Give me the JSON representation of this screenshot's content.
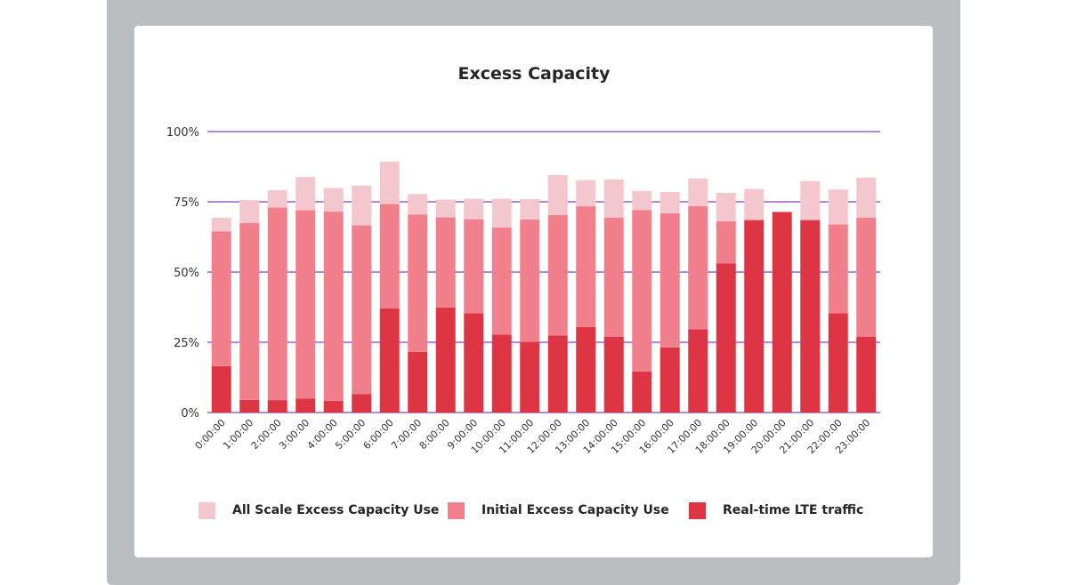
{
  "chart_data": {
    "type": "bar",
    "stacked": true,
    "title": "Excess Capacity",
    "xlabel": "",
    "ylabel": "",
    "ylim": [
      0,
      100
    ],
    "y_ticks": [
      "0%",
      "25%",
      "50%",
      "75%",
      "100%"
    ],
    "categories": [
      "0:00:00",
      "1:00:00",
      "2:00:00",
      "3:00:00",
      "4:00:00",
      "5:00:00",
      "6:00:00",
      "7:00:00",
      "8:00:00",
      "9:00:00",
      "10:00:00",
      "11:00:00",
      "12:00:00",
      "13:00:00",
      "14:00:00",
      "15:00:00",
      "16:00:00",
      "17:00:00",
      "18:00:00",
      "19:00:00",
      "20:00:00",
      "21:00:00",
      "22:00:00",
      "23:00:00"
    ],
    "series": [
      {
        "name": "Real-time LTE traffic",
        "color": "#de3545",
        "values": [
          16.5,
          4.5,
          4.4,
          5.0,
          4.1,
          6.6,
          37.1,
          21.6,
          37.4,
          35.3,
          27.7,
          25.1,
          27.4,
          30.4,
          27.0,
          14.6,
          23.1,
          29.6,
          53.1,
          68.5,
          71.4,
          68.5,
          35.3,
          27.0
        ]
      },
      {
        "name": "Initial Excess Capacity Use",
        "color": "#f2808c",
        "values": [
          48.0,
          62.9,
          68.6,
          67.0,
          67.4,
          60.0,
          37.1,
          48.9,
          32.1,
          33.5,
          38.2,
          43.6,
          42.9,
          43.0,
          42.4,
          57.5,
          47.8,
          43.9,
          15.0,
          0,
          0,
          0,
          31.7,
          42.4
        ]
      },
      {
        "name": "All Scale Excess Capacity Use",
        "color": "#f4c7cf",
        "values": [
          4.8,
          8.2,
          6.1,
          11.8,
          8.4,
          14.2,
          15.1,
          7.3,
          6.3,
          7.3,
          10.2,
          7.3,
          14.2,
          9.3,
          13.6,
          6.8,
          7.6,
          9.8,
          10.1,
          11.1,
          0,
          13.9,
          12.4,
          14.2
        ]
      }
    ],
    "legend": [
      "All Scale Excess Capacity Use",
      "Initial Excess Capacity Use",
      "Real-time LTE traffic"
    ],
    "legend_position": "bottom",
    "grid": true,
    "grid_color": "#8a3fc4"
  }
}
